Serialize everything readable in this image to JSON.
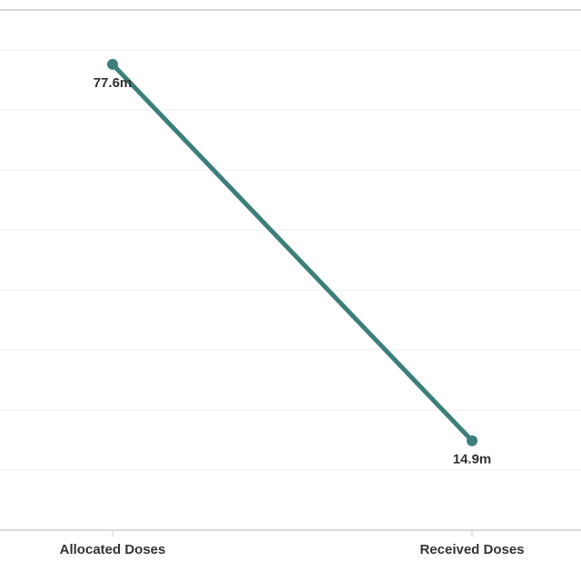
{
  "chart_data": {
    "type": "line",
    "title": "",
    "xlabel": "",
    "ylabel": "",
    "categories": [
      "Allocated Doses",
      "Received Doses"
    ],
    "series": [
      {
        "values": [
          77.6,
          14.9
        ],
        "labels": [
          "77.6m",
          "14.9m"
        ],
        "color": "#3c7f7a"
      }
    ],
    "y_unit": "million doses",
    "ylim": [
      0,
      80
    ],
    "grid": true,
    "legend": "none"
  }
}
